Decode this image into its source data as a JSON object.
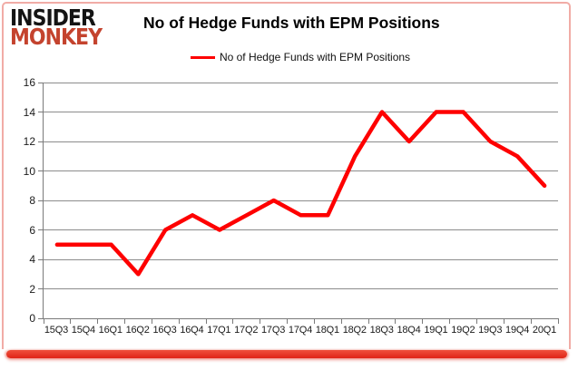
{
  "page": {
    "logo": {
      "line1": "INSIDER",
      "line2": "MONKEY"
    },
    "title": "No of Hedge Funds with EPM Positions",
    "legend_label": "No of Hedge Funds with EPM Positions",
    "colors": {
      "line": "#FE0000",
      "logo_black": "#141414",
      "logo_red": "#C4432E",
      "frame_pink": "#F1ACA6",
      "frame_red": "#E2281B",
      "gridline": "#8C8C8C",
      "axis": "#7A7A7A",
      "text": "#1A1A1A"
    }
  },
  "chart_data": {
    "type": "line",
    "title": "No of Hedge Funds with EPM Positions",
    "categories": [
      "15Q3",
      "15Q4",
      "16Q1",
      "16Q2",
      "16Q3",
      "16Q4",
      "17Q1",
      "17Q2",
      "17Q3",
      "17Q4",
      "18Q1",
      "18Q2",
      "18Q3",
      "18Q4",
      "19Q1",
      "19Q2",
      "19Q3",
      "19Q4",
      "20Q1"
    ],
    "series": [
      {
        "name": "No of Hedge Funds with EPM Positions",
        "color": "#FE0000",
        "values": [
          5,
          5,
          5,
          3,
          6,
          7,
          6,
          7,
          8,
          7,
          7,
          11,
          14,
          12,
          14,
          14,
          12,
          11,
          9
        ]
      }
    ],
    "xlabel": "",
    "ylabel": "",
    "ylim": [
      0,
      16
    ],
    "ytick_step": 2,
    "grid": "horizontal",
    "legend_position": "top-center"
  }
}
